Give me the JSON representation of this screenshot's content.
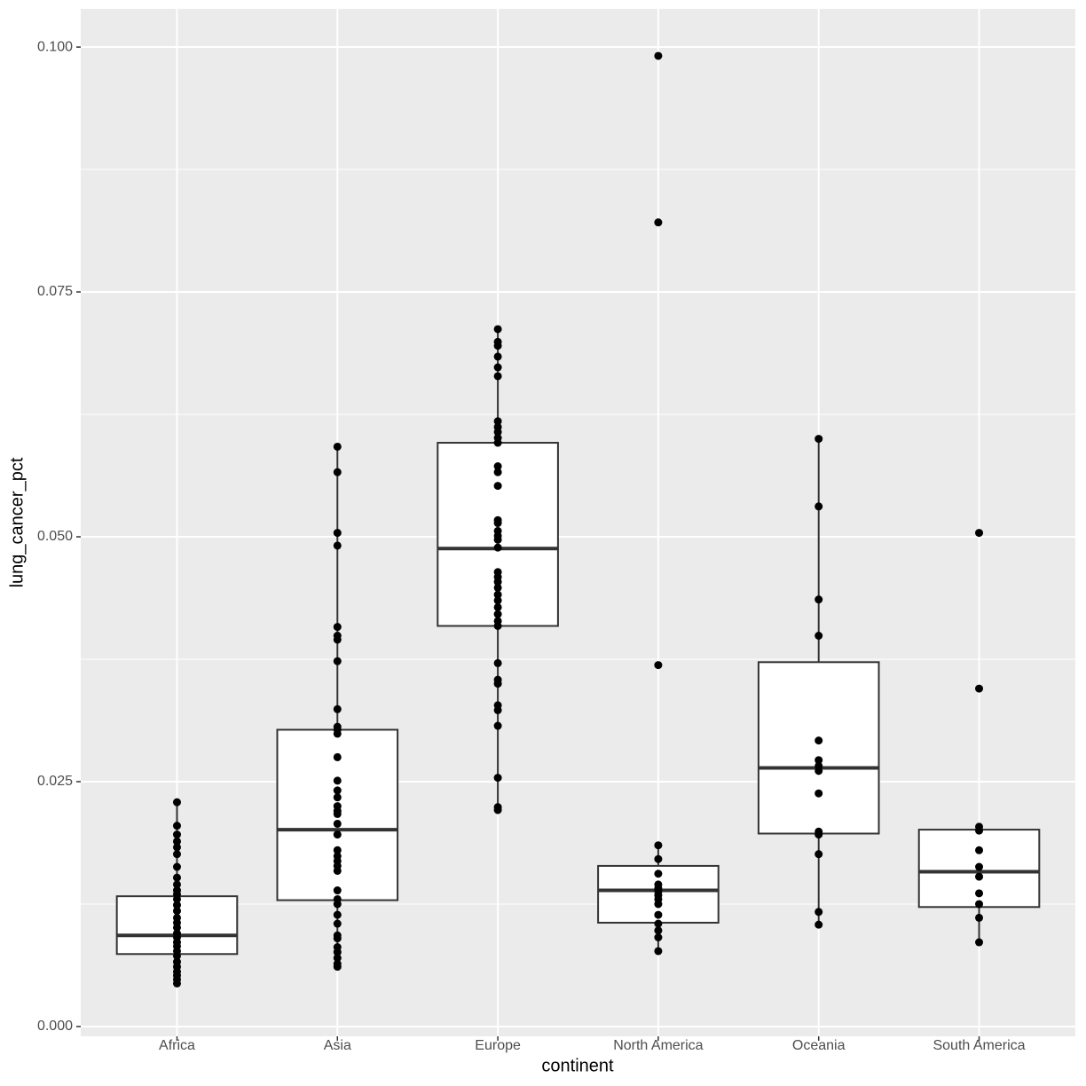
{
  "chart_data": {
    "type": "box",
    "x_label": "continent",
    "y_label": "lung_cancer_pct",
    "categories": [
      "Africa",
      "Asia",
      "Europe",
      "North America",
      "Oceania",
      "South America"
    ],
    "whisker_low": [
      0.0044,
      0.0061,
      0.0221,
      0.0077,
      0.0104,
      0.0086
    ],
    "q1": [
      0.0074,
      0.0129,
      0.0409,
      0.0106,
      0.0197,
      0.0122
    ],
    "median": [
      0.0093,
      0.0201,
      0.0488,
      0.0139,
      0.0264,
      0.0158
    ],
    "q3": [
      0.0133,
      0.0303,
      0.0596,
      0.0164,
      0.0372,
      0.0201
    ],
    "whisker_high": [
      0.0229,
      0.0592,
      0.0712,
      0.0185,
      0.06,
      0.0201
    ],
    "points": [
      [
        0.0229,
        0.0205,
        0.0196,
        0.0189,
        0.0183,
        0.0176,
        0.0163,
        0.0152,
        0.0145,
        0.0139,
        0.0135,
        0.013,
        0.0124,
        0.0118,
        0.0111,
        0.0106,
        0.0101,
        0.0095,
        0.0091,
        0.0086,
        0.0082,
        0.0077,
        0.0072,
        0.0066,
        0.0061,
        0.0056,
        0.0052,
        0.0048,
        0.0044
      ],
      [
        0.0592,
        0.0566,
        0.0504,
        0.0491,
        0.0408,
        0.0399,
        0.0395,
        0.0373,
        0.0324,
        0.0306,
        0.0303,
        0.0299,
        0.0275,
        0.0251,
        0.0241,
        0.0234,
        0.0225,
        0.022,
        0.0217,
        0.0207,
        0.0196,
        0.018,
        0.0174,
        0.0169,
        0.0164,
        0.0159,
        0.0139,
        0.013,
        0.0125,
        0.0114,
        0.0105,
        0.0093,
        0.009,
        0.0081,
        0.0076,
        0.007,
        0.0064,
        0.0061
      ],
      [
        0.0712,
        0.0699,
        0.0695,
        0.0684,
        0.0673,
        0.0664,
        0.0618,
        0.0612,
        0.0607,
        0.0601,
        0.0596,
        0.0572,
        0.0566,
        0.0552,
        0.0517,
        0.0514,
        0.0506,
        0.0501,
        0.0497,
        0.0489,
        0.0464,
        0.0459,
        0.0454,
        0.0448,
        0.0441,
        0.0435,
        0.0428,
        0.0421,
        0.0414,
        0.0409,
        0.0371,
        0.0354,
        0.035,
        0.0328,
        0.0323,
        0.0307,
        0.0254,
        0.0224,
        0.0221
      ],
      [
        0.0991,
        0.0821,
        0.0369,
        0.0185,
        0.0171,
        0.0156,
        0.0145,
        0.0141,
        0.0138,
        0.0134,
        0.013,
        0.0125,
        0.0114,
        0.0105,
        0.0098,
        0.0091,
        0.0077
      ],
      [
        0.06,
        0.0531,
        0.0436,
        0.0399,
        0.0292,
        0.0272,
        0.0266,
        0.0261,
        0.0238,
        0.0199,
        0.0196,
        0.0176,
        0.0117,
        0.0104
      ],
      [
        0.0504,
        0.0345,
        0.0204,
        0.02,
        0.018,
        0.0163,
        0.0153,
        0.0136,
        0.0125,
        0.0111,
        0.0086
      ]
    ],
    "ylim": [
      -0.001,
      0.1039
    ],
    "yticks": [
      {
        "value": 0,
        "label": "0.000"
      },
      {
        "value": 0.025,
        "label": "0.025"
      },
      {
        "value": 0.05,
        "label": "0.050"
      },
      {
        "value": 0.075,
        "label": "0.075"
      },
      {
        "value": 0.1,
        "label": "0.100"
      }
    ],
    "minor_yticks": [
      0.0125,
      0.0375,
      0.0625,
      0.0875
    ],
    "grid": true,
    "box_fill": "#ffffff",
    "point_color": "#000000",
    "panel_color": "#ebebeb"
  }
}
